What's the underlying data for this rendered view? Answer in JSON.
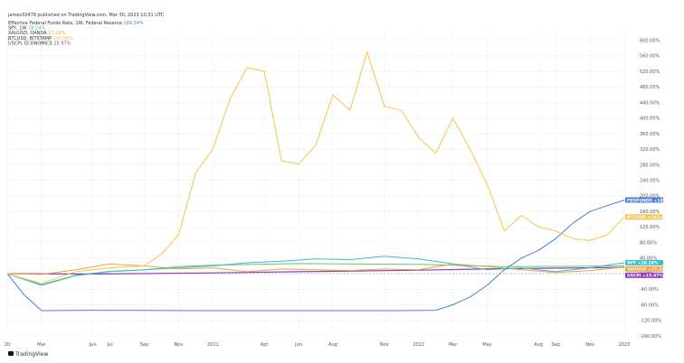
{
  "header": "james33478 published on TradingView.com, Mar 30, 2023 10:31 UTC",
  "brand": "TradingView",
  "colors": {
    "fedfunds": "#4a7fd6",
    "spy": "#3fbcc9",
    "xauusd": "#f1a13b",
    "btcusd": "#f6c54a",
    "uscpi": "#8b3fc4",
    "grid": "#eef0f3",
    "zero_line": "#9aa0a8",
    "green": "#6ac46a"
  },
  "chart_data": {
    "type": "line",
    "title": "",
    "xlabel": "",
    "ylabel": "",
    "y_unit": "%",
    "ylim": [
      -160,
      620
    ],
    "x_range": [
      "2020-01",
      "2023-01"
    ],
    "y_ticks": [
      "600.00%",
      "560.00%",
      "520.00%",
      "480.00%",
      "440.00%",
      "400.00%",
      "360.00%",
      "320.00%",
      "280.00%",
      "240.00%",
      "200.00%",
      "160.00%",
      "120.00%",
      "80.00%",
      "40.00%",
      "0.00%",
      "-40.00%",
      "-80.00%",
      "-120.00%",
      "-160.00%"
    ],
    "y_tick_values": [
      600,
      560,
      520,
      480,
      440,
      400,
      360,
      320,
      280,
      240,
      200,
      160,
      120,
      80,
      40,
      0,
      -40,
      -80,
      -120,
      -160
    ],
    "x_ticks": [
      {
        "label": "20",
        "date": "2020-01"
      },
      {
        "label": "Mar",
        "date": "2020-03"
      },
      {
        "label": "Jun",
        "date": "2020-06"
      },
      {
        "label": "Jul",
        "date": "2020-07"
      },
      {
        "label": "Sep",
        "date": "2020-09"
      },
      {
        "label": "Nov",
        "date": "2020-11"
      },
      {
        "label": "2021",
        "date": "2021-01"
      },
      {
        "label": "Apr",
        "date": "2021-04"
      },
      {
        "label": "Jun",
        "date": "2021-06"
      },
      {
        "label": "Aug",
        "date": "2021-08"
      },
      {
        "label": "Nov",
        "date": "2021-11"
      },
      {
        "label": "2022",
        "date": "2022-01"
      },
      {
        "label": "Mar",
        "date": "2022-03"
      },
      {
        "label": "May",
        "date": "2022-05"
      },
      {
        "label": "Aug",
        "date": "2022-08"
      },
      {
        "label": "Sep",
        "date": "2022-09"
      },
      {
        "label": "Nov",
        "date": "2022-11"
      },
      {
        "label": "2023",
        "date": "2023-01"
      }
    ],
    "legend": [
      {
        "text": "Effective Federal Funds Rate, 1W, Federal Reserve",
        "value": "189.24%",
        "series": "fedfunds"
      },
      {
        "text": "SPY, 1W",
        "value": "28.24%",
        "series": "spy"
      },
      {
        "text": "XAUUSD, OANDA",
        "value": "17.24%",
        "series": "xauusd"
      },
      {
        "text": "BTCUSD, BITSTAMP",
        "value": "145.86%",
        "series": "btcusd"
      },
      {
        "text": "USCPI, ECONOMICS",
        "value": "15.97%",
        "series": "uscpi"
      }
    ],
    "legend_placement": "top-left",
    "grid": true,
    "badges": [
      {
        "label": "FEDFUNDS",
        "value": "189.24%",
        "series": "fedfunds",
        "y": 189.24
      },
      {
        "label": "BTCUSD",
        "value": "145.86%",
        "series": "btcusd",
        "y": 145.86
      },
      {
        "label": "SPY",
        "value": "28.24%",
        "series": "spy",
        "y": 28.24
      },
      {
        "label": "XAUUSD",
        "value": "17.24%",
        "series": "xauusd",
        "y": 17.24
      },
      {
        "label": "USCPI",
        "value": "15.97%",
        "series": "uscpi",
        "y": 15.97
      }
    ],
    "series": [
      {
        "key": "btcusd",
        "name": "BTCUSD",
        "points": [
          [
            "2020-01",
            0
          ],
          [
            "2020-03",
            -25
          ],
          [
            "2020-05",
            5
          ],
          [
            "2020-07",
            15
          ],
          [
            "2020-09",
            20
          ],
          [
            "2020-10",
            50
          ],
          [
            "2020-11",
            100
          ],
          [
            "2020-12",
            260
          ],
          [
            "2021-01",
            320
          ],
          [
            "2021-02",
            450
          ],
          [
            "2021-03",
            530
          ],
          [
            "2021-04",
            520
          ],
          [
            "2021-05",
            290
          ],
          [
            "2021-06",
            282
          ],
          [
            "2021-07",
            330
          ],
          [
            "2021-08",
            460
          ],
          [
            "2021-09",
            420
          ],
          [
            "2021-10",
            570
          ],
          [
            "2021-11",
            430
          ],
          [
            "2021-12",
            420
          ],
          [
            "2022-01",
            350
          ],
          [
            "2022-02",
            310
          ],
          [
            "2022-03",
            400
          ],
          [
            "2022-04",
            320
          ],
          [
            "2022-05",
            230
          ],
          [
            "2022-06",
            110
          ],
          [
            "2022-07",
            150
          ],
          [
            "2022-08",
            120
          ],
          [
            "2022-09",
            110
          ],
          [
            "2022-10",
            90
          ],
          [
            "2022-11",
            85
          ],
          [
            "2022-12",
            100
          ],
          [
            "2023-01",
            145.86
          ]
        ]
      },
      {
        "key": "fedfunds",
        "name": "FEDFUNDS",
        "points": [
          [
            "2020-01",
            0
          ],
          [
            "2020-02",
            -55
          ],
          [
            "2020-03",
            -95
          ],
          [
            "2020-06",
            -94
          ],
          [
            "2020-12",
            -95
          ],
          [
            "2021-06",
            -95
          ],
          [
            "2021-12",
            -95
          ],
          [
            "2022-02",
            -94
          ],
          [
            "2022-03",
            -80
          ],
          [
            "2022-04",
            -60
          ],
          [
            "2022-05",
            -30
          ],
          [
            "2022-06",
            10
          ],
          [
            "2022-07",
            40
          ],
          [
            "2022-08",
            60
          ],
          [
            "2022-09",
            90
          ],
          [
            "2022-10",
            130
          ],
          [
            "2022-11",
            160
          ],
          [
            "2022-12",
            175
          ],
          [
            "2023-01",
            189.24
          ]
        ]
      },
      {
        "key": "spy",
        "name": "SPY",
        "points": [
          [
            "2020-01",
            0
          ],
          [
            "2020-03",
            -30
          ],
          [
            "2020-05",
            -5
          ],
          [
            "2020-07",
            5
          ],
          [
            "2020-09",
            10
          ],
          [
            "2020-11",
            15
          ],
          [
            "2021-01",
            20
          ],
          [
            "2021-03",
            28
          ],
          [
            "2021-05",
            32
          ],
          [
            "2021-07",
            38
          ],
          [
            "2021-09",
            36
          ],
          [
            "2021-11",
            45
          ],
          [
            "2022-01",
            38
          ],
          [
            "2022-03",
            25
          ],
          [
            "2022-05",
            10
          ],
          [
            "2022-07",
            15
          ],
          [
            "2022-09",
            5
          ],
          [
            "2022-11",
            15
          ],
          [
            "2023-01",
            28.24
          ]
        ]
      },
      {
        "key": "xauusd",
        "name": "XAUUSD",
        "points": [
          [
            "2020-01",
            0
          ],
          [
            "2020-03",
            -2
          ],
          [
            "2020-05",
            10
          ],
          [
            "2020-07",
            25
          ],
          [
            "2020-09",
            20
          ],
          [
            "2020-11",
            12
          ],
          [
            "2021-01",
            15
          ],
          [
            "2021-03",
            5
          ],
          [
            "2021-05",
            12
          ],
          [
            "2021-07",
            10
          ],
          [
            "2021-09",
            8
          ],
          [
            "2021-11",
            12
          ],
          [
            "2022-01",
            10
          ],
          [
            "2022-03",
            25
          ],
          [
            "2022-05",
            18
          ],
          [
            "2022-07",
            10
          ],
          [
            "2022-09",
            3
          ],
          [
            "2022-11",
            8
          ],
          [
            "2023-01",
            17.24
          ]
        ]
      },
      {
        "key": "uscpi",
        "name": "USCPI",
        "points": [
          [
            "2020-01",
            0
          ],
          [
            "2020-06",
            -1
          ],
          [
            "2021-01",
            2
          ],
          [
            "2021-06",
            5
          ],
          [
            "2022-01",
            9
          ],
          [
            "2022-06",
            13
          ],
          [
            "2023-01",
            15.97
          ]
        ]
      },
      {
        "key": "green",
        "name": "",
        "points": [
          [
            "2020-01",
            0
          ],
          [
            "2020-03",
            -28
          ],
          [
            "2020-05",
            -4
          ],
          [
            "2020-07",
            6
          ],
          [
            "2020-09",
            10
          ],
          [
            "2020-11",
            18
          ],
          [
            "2021-01",
            22
          ],
          [
            "2021-06",
            26
          ],
          [
            "2022-01",
            24
          ],
          [
            "2022-06",
            18
          ],
          [
            "2023-01",
            20
          ]
        ]
      }
    ]
  }
}
